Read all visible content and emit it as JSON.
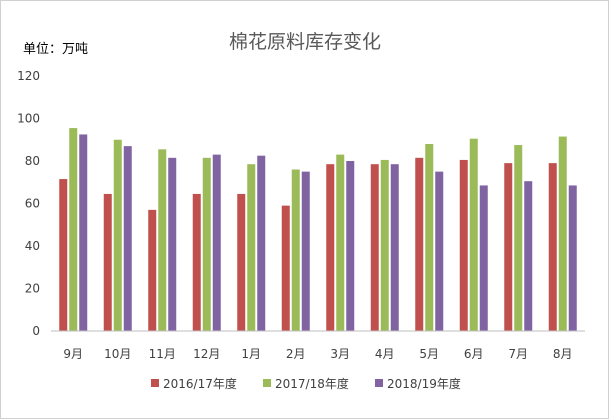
{
  "chart_data": {
    "type": "bar",
    "title": "棉花原料库存变化",
    "unit_label": "单位：万吨",
    "xlabel": "",
    "ylabel": "",
    "ylim": [
      0,
      120
    ],
    "yticks": [
      "0",
      "20",
      "40",
      "60",
      "80",
      "100",
      "120"
    ],
    "grid": false,
    "legend_position": "bottom",
    "categories": [
      "9月",
      "10月",
      "11月",
      "12月",
      "1月",
      "2月",
      "3月",
      "4月",
      "5月",
      "6月",
      "7月",
      "8月"
    ],
    "series": [
      {
        "name": "2016/17年度",
        "color": "#c0504d",
        "values": [
          71.5,
          64.5,
          57,
          64.5,
          64.5,
          59,
          78.5,
          78.5,
          81.5,
          80.5,
          79,
          79
        ]
      },
      {
        "name": "2017/18年度",
        "color": "#9bbb59",
        "values": [
          95.5,
          90,
          85.5,
          81.5,
          78.5,
          76,
          83,
          80.5,
          88,
          90.5,
          87.5,
          91.5
        ]
      },
      {
        "name": "2018/19年度",
        "color": "#8064a2",
        "values": [
          92.5,
          87,
          81.5,
          83,
          82.5,
          75,
          80,
          78.5,
          75,
          68.5,
          70.5,
          68.5
        ]
      }
    ]
  }
}
